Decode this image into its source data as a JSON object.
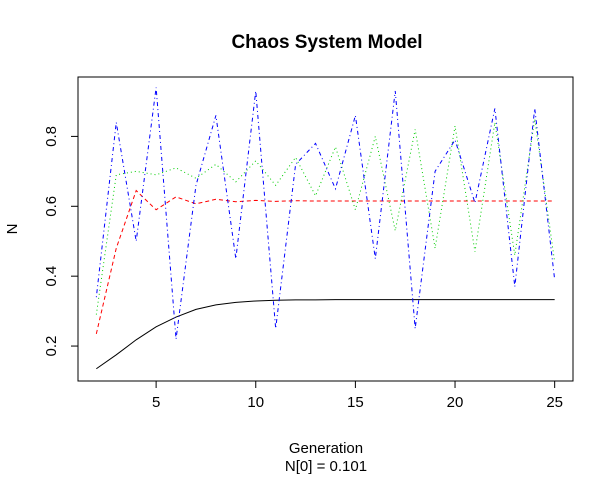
{
  "chart_data": {
    "type": "line",
    "title": "Chaos System Model",
    "xlabel": "Generation",
    "xlabel_sub": "N[0] = 0.101",
    "ylabel": "N",
    "xlim": [
      1.08,
      25.92
    ],
    "ylim": [
      0.1,
      0.97
    ],
    "x_ticks": [
      5,
      10,
      15,
      20,
      25
    ],
    "x_tick_labels": [
      "5",
      "10",
      "15",
      "20",
      "25"
    ],
    "y_ticks": [
      0.2,
      0.4,
      0.6,
      0.8
    ],
    "y_tick_labels": [
      "0.2",
      "0.4",
      "0.6",
      "0.8"
    ],
    "grid": false,
    "legend": "none",
    "x": [
      2,
      3,
      4,
      5,
      6,
      7,
      8,
      9,
      10,
      11,
      12,
      13,
      14,
      15,
      16,
      17,
      18,
      19,
      20,
      21,
      22,
      23,
      24,
      25
    ],
    "series": [
      {
        "color": "#000000",
        "dash": "solid",
        "values": [
          0.135,
          0.175,
          0.218,
          0.255,
          0.283,
          0.305,
          0.318,
          0.325,
          0.329,
          0.331,
          0.332,
          0.332,
          0.333,
          0.333,
          0.333,
          0.333,
          0.333,
          0.333,
          0.333,
          0.333,
          0.333,
          0.333,
          0.333,
          0.333
        ]
      },
      {
        "color": "#ff0000",
        "dash": "dashed",
        "values": [
          0.235,
          0.48,
          0.645,
          0.59,
          0.627,
          0.607,
          0.62,
          0.613,
          0.617,
          0.614,
          0.616,
          0.615,
          0.615,
          0.615,
          0.615,
          0.615,
          0.615,
          0.615,
          0.615,
          0.615,
          0.615,
          0.615,
          0.615,
          0.615
        ]
      },
      {
        "color": "#00cd00",
        "dash": "dotted",
        "values": [
          0.29,
          0.69,
          0.7,
          0.69,
          0.71,
          0.68,
          0.72,
          0.67,
          0.73,
          0.66,
          0.74,
          0.63,
          0.77,
          0.59,
          0.8,
          0.53,
          0.82,
          0.48,
          0.83,
          0.47,
          0.84,
          0.46,
          0.85,
          0.44
        ]
      },
      {
        "color": "#0000ff",
        "dash": "dotdash",
        "values": [
          0.34,
          0.84,
          0.5,
          0.94,
          0.22,
          0.66,
          0.86,
          0.45,
          0.93,
          0.25,
          0.72,
          0.78,
          0.65,
          0.86,
          0.45,
          0.93,
          0.25,
          0.7,
          0.79,
          0.61,
          0.88,
          0.37,
          0.88,
          0.39
        ]
      }
    ]
  }
}
